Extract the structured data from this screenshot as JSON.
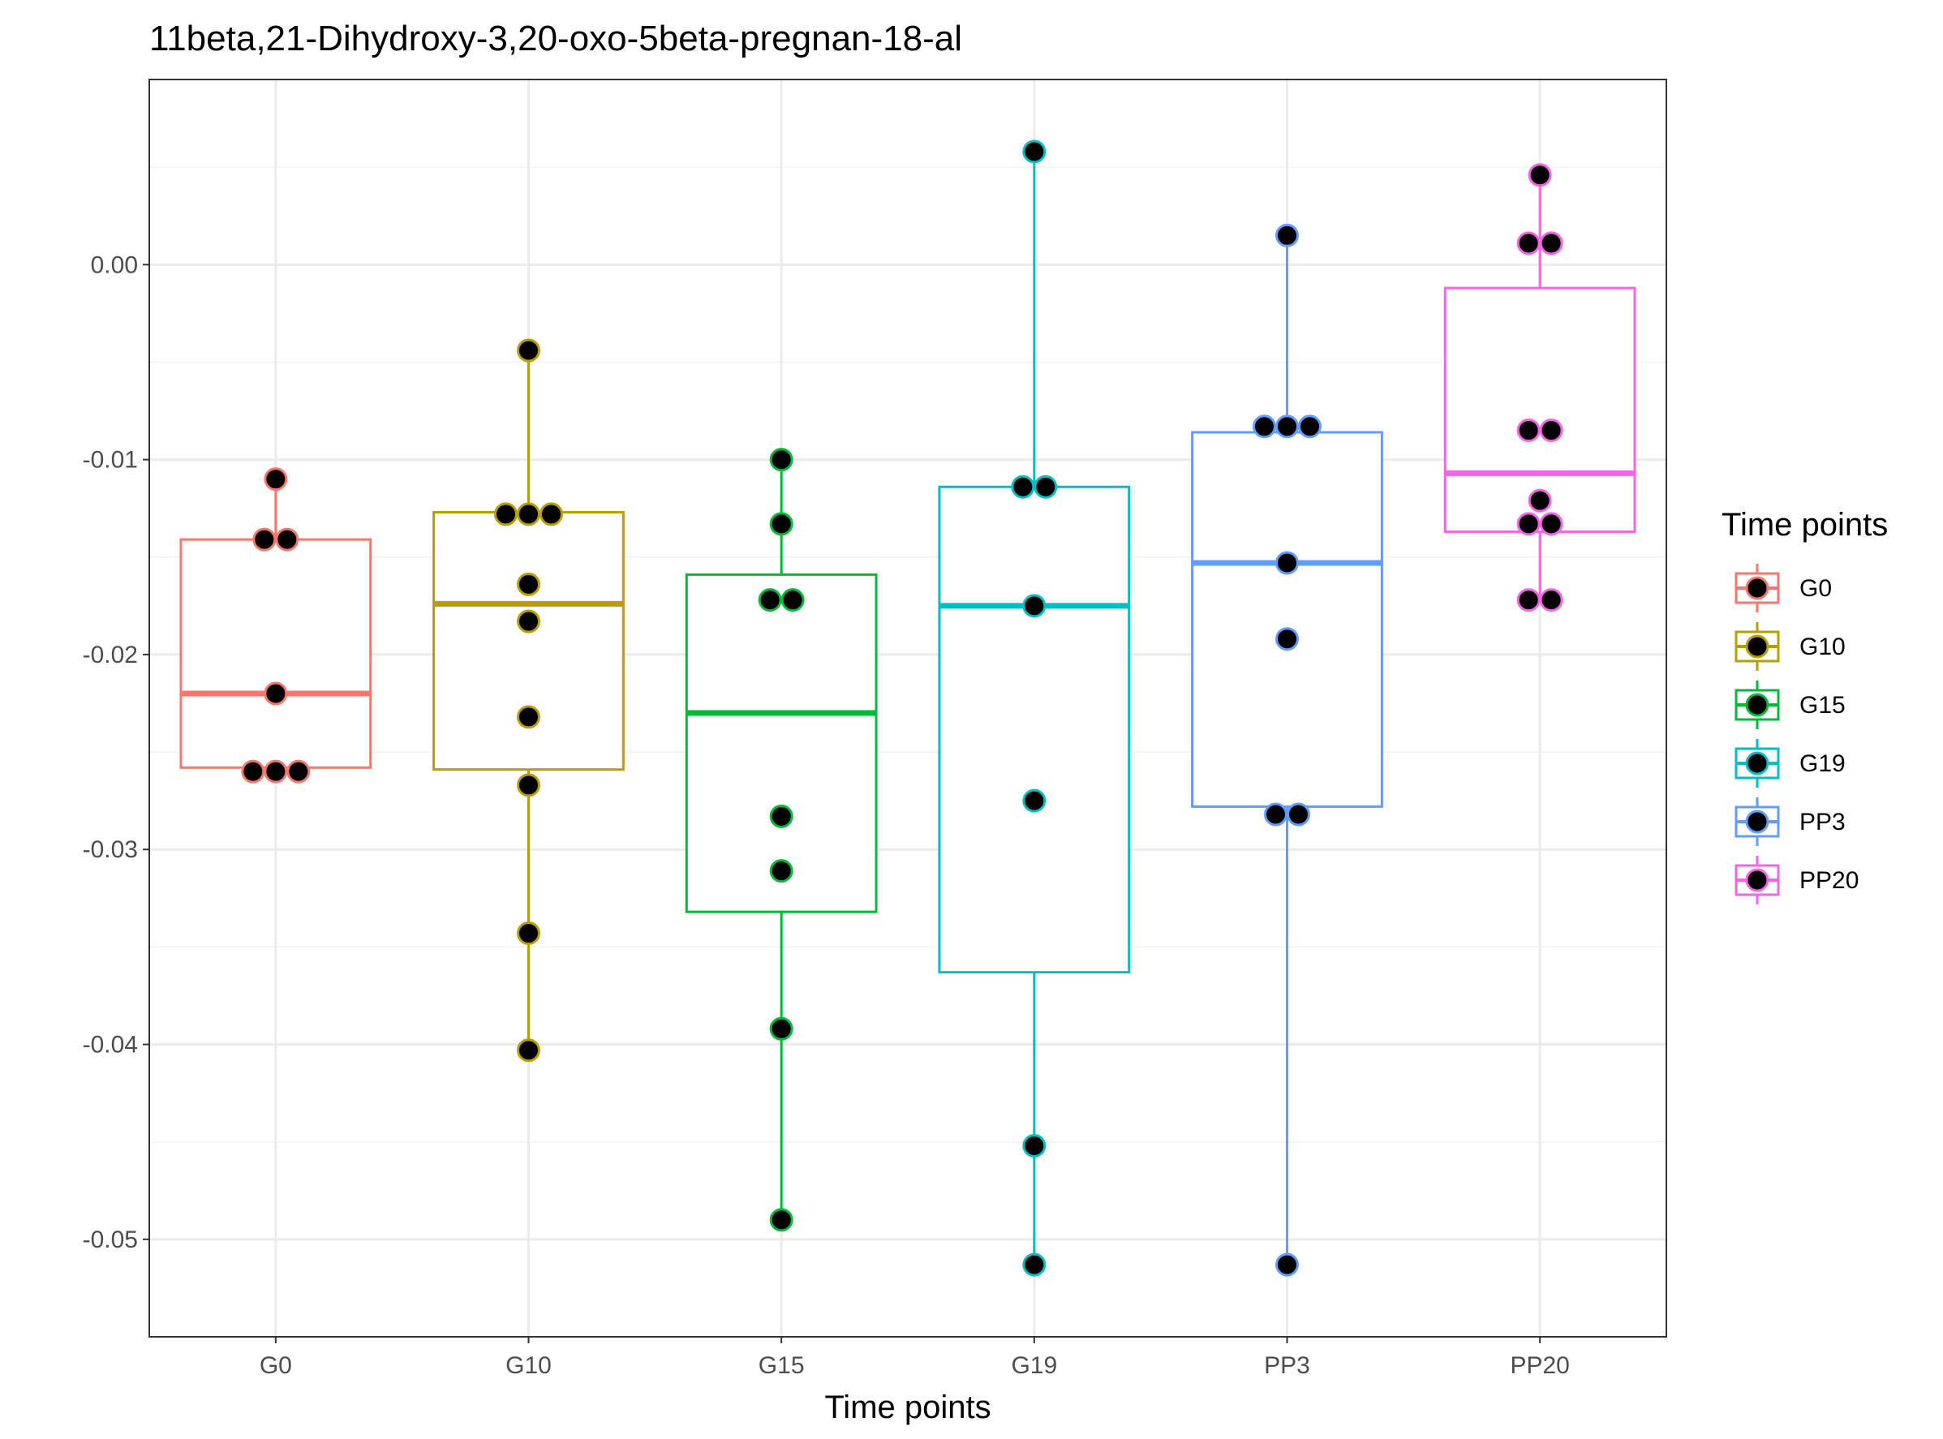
{
  "chart_data": {
    "type": "boxplot",
    "title": "11beta,21-Dihydroxy-3,20-oxo-5beta-pregnan-18-al",
    "xlabel": "Time points",
    "ylabel": "",
    "ylim": [
      -0.055,
      0.0095
    ],
    "yticks": [
      0.0,
      -0.01,
      -0.02,
      -0.03,
      -0.04,
      -0.05
    ],
    "ytick_labels": [
      "0.00",
      "-0.01",
      "-0.02",
      "-0.03",
      "-0.04",
      "-0.05"
    ],
    "grid": true,
    "legend": {
      "title": "Time points",
      "position": "right"
    },
    "categories": [
      "G0",
      "G10",
      "G15",
      "G19",
      "PP3",
      "PP20"
    ],
    "series": [
      {
        "name": "G0",
        "color": "#F8766D",
        "box": {
          "lower_whisker": -0.026,
          "q1": -0.0258,
          "median": -0.022,
          "q3": -0.0141,
          "upper_whisker": -0.011
        },
        "points": [
          -0.011,
          -0.0141,
          -0.0141,
          -0.022,
          -0.026,
          -0.026,
          -0.026
        ]
      },
      {
        "name": "G10",
        "color": "#B79F00",
        "box": {
          "lower_whisker": -0.0403,
          "q1": -0.0259,
          "median": -0.0174,
          "q3": -0.0127,
          "upper_whisker": -0.0044
        },
        "points": [
          -0.0044,
          -0.0128,
          -0.0128,
          -0.0128,
          -0.0164,
          -0.0183,
          -0.0232,
          -0.0267,
          -0.0343,
          -0.0403
        ]
      },
      {
        "name": "G15",
        "color": "#00BA38",
        "box": {
          "lower_whisker": -0.049,
          "q1": -0.0332,
          "median": -0.023,
          "q3": -0.0159,
          "upper_whisker": -0.01
        },
        "points": [
          -0.01,
          -0.0133,
          -0.0172,
          -0.0172,
          -0.0283,
          -0.0311,
          -0.0392,
          -0.049
        ]
      },
      {
        "name": "G19",
        "color": "#00BFC4",
        "box": {
          "lower_whisker": -0.0513,
          "q1": -0.0363,
          "median": -0.0175,
          "q3": -0.0114,
          "upper_whisker": 0.0058
        },
        "points": [
          0.0058,
          -0.0114,
          -0.0114,
          -0.0175,
          -0.0275,
          -0.0452,
          -0.0513
        ]
      },
      {
        "name": "PP3",
        "color": "#619CFF",
        "box": {
          "lower_whisker": -0.0513,
          "q1": -0.0278,
          "median": -0.0153,
          "q3": -0.0086,
          "upper_whisker": 0.0015
        },
        "points": [
          0.0015,
          -0.0083,
          -0.0083,
          -0.0083,
          -0.0153,
          -0.0192,
          -0.0282,
          -0.0282,
          -0.0513
        ]
      },
      {
        "name": "PP20",
        "color": "#F564E3",
        "box": {
          "lower_whisker": -0.0172,
          "q1": -0.0137,
          "median": -0.0107,
          "q3": -0.0012,
          "upper_whisker": 0.0046
        },
        "points": [
          0.0046,
          0.0011,
          0.0011,
          -0.0085,
          -0.0085,
          -0.0121,
          -0.0133,
          -0.0133,
          -0.0172,
          -0.0172
        ]
      }
    ]
  }
}
